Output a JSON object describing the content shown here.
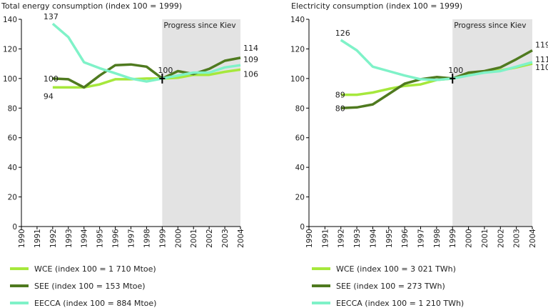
{
  "chart_data": [
    {
      "type": "line",
      "title": "Total energy consumption (index 100 = 1999)",
      "x": [
        "1990",
        "1991",
        "1992",
        "1993",
        "1994",
        "1995",
        "1996",
        "1997",
        "1998",
        "1999",
        "2000",
        "2001",
        "2002",
        "2003",
        "2004"
      ],
      "ylim": [
        0,
        140
      ],
      "yticks": [
        0,
        20,
        40,
        60,
        80,
        100,
        120,
        140
      ],
      "shaded_region": {
        "from": "1999",
        "to": "2004",
        "label": "Progress since Kiev"
      },
      "series": [
        {
          "name": "WCE (index 100 = 1 710 Mtoe)",
          "color": "#a6e83c",
          "values": [
            null,
            null,
            94,
            94,
            94,
            96,
            99.5,
            99.5,
            100,
            100,
            100.5,
            102.5,
            102.5,
            104.5,
            106
          ]
        },
        {
          "name": "SEE (index 100 = 153 Mtoe)",
          "color": "#4f7a1f",
          "values": [
            null,
            null,
            100,
            99.5,
            94,
            102,
            109,
            109.5,
            108,
            100,
            105,
            103,
            106.5,
            112,
            114
          ]
        },
        {
          "name": "EECCA (index 100 = 884 Mtoe)",
          "color": "#7ff2c8",
          "values": [
            null,
            null,
            137,
            128,
            111,
            107,
            103.5,
            100,
            98,
            100,
            102,
            104,
            104,
            107.5,
            109
          ]
        }
      ],
      "annotations": [
        {
          "text": "137",
          "x": "1992",
          "y": 137
        },
        {
          "text": "100",
          "x": "1992",
          "y": 100
        },
        {
          "text": "94",
          "x": "1992",
          "y": 94
        },
        {
          "text": "100",
          "x": "1999",
          "y": 100
        },
        {
          "text": "114",
          "x": "2004",
          "y": 114
        },
        {
          "text": "109",
          "x": "2004",
          "y": 109
        },
        {
          "text": "106",
          "x": "2004",
          "y": 106
        }
      ]
    },
    {
      "type": "line",
      "title": "Electricity consumption (index 100 = 1999)",
      "x": [
        "1990",
        "1991",
        "1992",
        "1993",
        "1994",
        "1995",
        "1996",
        "1997",
        "1998",
        "1999",
        "2000",
        "2001",
        "2002",
        "2003",
        "2004"
      ],
      "ylim": [
        0,
        140
      ],
      "yticks": [
        0,
        20,
        40,
        60,
        80,
        100,
        120,
        140
      ],
      "shaded_region": {
        "from": "1999",
        "to": "2004",
        "label": "Progress since Kiev"
      },
      "series": [
        {
          "name": "WCE (index 100 = 3 021 TWh)",
          "color": "#a6e83c",
          "values": [
            null,
            null,
            89,
            89,
            90.5,
            93,
            95,
            96,
            99,
            100,
            103,
            104.5,
            105.5,
            107.5,
            110
          ]
        },
        {
          "name": "SEE (index 100 = 273 TWh)",
          "color": "#4f7a1f",
          "values": [
            null,
            null,
            80,
            80.5,
            82.5,
            89.5,
            96.5,
            99.5,
            101,
            100,
            104,
            105,
            107.5,
            113,
            119
          ]
        },
        {
          "name": "EECCA (index 100 = 1 210 TWh)",
          "color": "#7ff2c8",
          "values": [
            null,
            null,
            126,
            119,
            108,
            105,
            102,
            99.5,
            99,
            100,
            102,
            104,
            105,
            108,
            111
          ]
        }
      ],
      "annotations": [
        {
          "text": "126",
          "x": "1992",
          "y": 126
        },
        {
          "text": "89",
          "x": "1992",
          "y": 89
        },
        {
          "text": "80",
          "x": "1992",
          "y": 80
        },
        {
          "text": "100",
          "x": "1999",
          "y": 100
        },
        {
          "text": "119",
          "x": "2004",
          "y": 119
        },
        {
          "text": "111",
          "x": "2004",
          "y": 111
        },
        {
          "text": "110",
          "x": "2004",
          "y": 110
        }
      ]
    }
  ]
}
